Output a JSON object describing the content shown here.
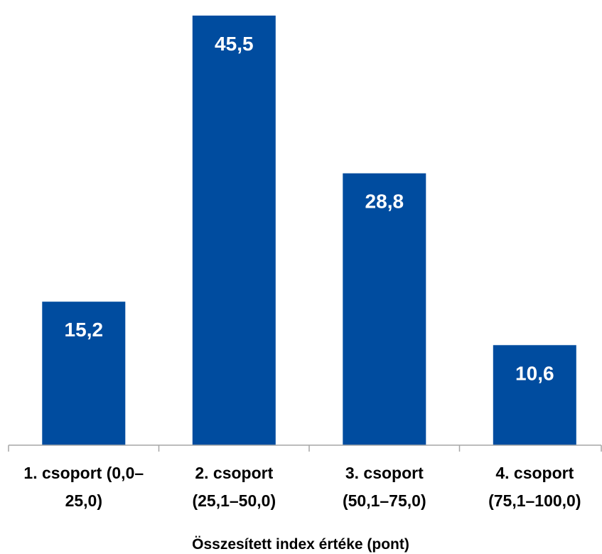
{
  "chart_data": {
    "type": "bar",
    "categories": [
      [
        "1. csoport (0,0–",
        "25,0)"
      ],
      [
        "2. csoport",
        "(25,1–50,0)"
      ],
      [
        "3. csoport",
        "(50,1–75,0)"
      ],
      [
        "4. csoport",
        "(75,1–100,0)"
      ]
    ],
    "values": [
      15.2,
      45.5,
      28.8,
      10.6
    ],
    "value_labels": [
      "15,2",
      "45,5",
      "28,8",
      "10,6"
    ],
    "title": "",
    "xlabel": "Összesített index értéke (pont)",
    "ylabel": "",
    "ylim": [
      0,
      46.4
    ],
    "grid": false,
    "legend": "none",
    "bar_color": "#004C9F",
    "axis_color": "#a6a6a6"
  }
}
